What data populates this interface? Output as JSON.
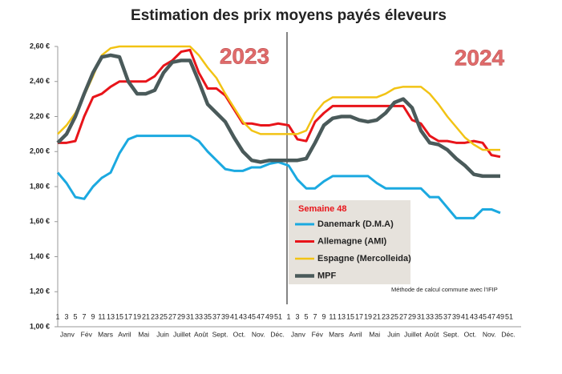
{
  "chart_data": {
    "type": "line",
    "title": "Estimation des prix moyens payés éleveurs",
    "annotations": [
      "2023",
      "2024",
      "Semaine 48",
      "Méthode de calcul commune avec l'IFIP"
    ],
    "categories": [
      "1",
      "3",
      "5",
      "7",
      "9",
      "11",
      "13",
      "15",
      "17",
      "19",
      "21",
      "23",
      "25",
      "27",
      "29",
      "31",
      "33",
      "35",
      "37",
      "39",
      "41",
      "43",
      "45",
      "47",
      "49",
      "51",
      "1",
      "3",
      "5",
      "7",
      "9",
      "11",
      "13",
      "15",
      "17",
      "19",
      "21",
      "23",
      "25",
      "27",
      "29",
      "31",
      "33",
      "35",
      "37",
      "39",
      "41",
      "43",
      "45",
      "47",
      "49",
      "51"
    ],
    "months": [
      "Janv",
      "Fév",
      "Mars",
      "Avril",
      "Mai",
      "Juin",
      "Juillet",
      "Août",
      "Sept.",
      "Oct.",
      "Nov.",
      "Déc.",
      "Janv",
      "Fév",
      "Mars",
      "Avril",
      "Mai",
      "Juin",
      "Juillet",
      "Août",
      "Sept.",
      "Oct.",
      "Nov.",
      "Déc."
    ],
    "ylim": [
      1.0,
      2.6
    ],
    "yticks": [
      {
        "value": 1.0,
        "label": "1,00 €"
      },
      {
        "value": 1.2,
        "label": "1,20 €"
      },
      {
        "value": 1.4,
        "label": "1,40 €"
      },
      {
        "value": 1.6,
        "label": "1,60 €"
      },
      {
        "value": 1.8,
        "label": "1,80 €"
      },
      {
        "value": 2.0,
        "label": "2,00 €"
      },
      {
        "value": 2.2,
        "label": "2,20 €"
      },
      {
        "value": 2.4,
        "label": "2,40 €"
      },
      {
        "value": 2.6,
        "label": "2,60 €"
      }
    ],
    "series": [
      {
        "name": "Danemark (D.M.A)",
        "color": "#1ba9e0",
        "width": 3,
        "values": [
          1.88,
          1.82,
          1.74,
          1.73,
          1.8,
          1.85,
          1.88,
          1.99,
          2.07,
          2.09,
          2.09,
          2.09,
          2.09,
          2.09,
          2.09,
          2.09,
          2.06,
          2.0,
          1.95,
          1.9,
          1.89,
          1.89,
          1.91,
          1.91,
          1.93,
          1.94,
          1.92,
          1.84,
          1.79,
          1.79,
          1.83,
          1.86,
          1.86,
          1.86,
          1.86,
          1.86,
          1.82,
          1.79,
          1.79,
          1.79,
          1.79,
          1.79,
          1.74,
          1.74,
          1.68,
          1.62,
          1.62,
          1.62,
          1.67,
          1.67,
          1.65,
          null
        ]
      },
      {
        "name": "Allemagne (AMI)",
        "color": "#e8141a",
        "width": 3,
        "values": [
          2.05,
          2.05,
          2.06,
          2.2,
          2.31,
          2.33,
          2.37,
          2.4,
          2.4,
          2.4,
          2.4,
          2.43,
          2.49,
          2.52,
          2.57,
          2.58,
          2.45,
          2.36,
          2.36,
          2.32,
          2.24,
          2.16,
          2.16,
          2.15,
          2.15,
          2.16,
          2.15,
          2.07,
          2.06,
          2.17,
          2.22,
          2.26,
          2.26,
          2.26,
          2.26,
          2.26,
          2.26,
          2.26,
          2.26,
          2.26,
          2.18,
          2.16,
          2.09,
          2.06,
          2.06,
          2.05,
          2.05,
          2.06,
          2.05,
          1.98,
          1.97,
          null
        ]
      },
      {
        "name": "Espagne (Mercolleida)",
        "color": "#f2c314",
        "width": 2.5,
        "values": [
          2.1,
          2.15,
          2.22,
          2.32,
          2.43,
          2.55,
          2.59,
          2.6,
          2.6,
          2.6,
          2.6,
          2.6,
          2.6,
          2.6,
          2.6,
          2.6,
          2.55,
          2.48,
          2.42,
          2.33,
          2.25,
          2.17,
          2.12,
          2.1,
          2.1,
          2.1,
          2.1,
          2.1,
          2.12,
          2.22,
          2.28,
          2.31,
          2.31,
          2.31,
          2.31,
          2.31,
          2.31,
          2.33,
          2.36,
          2.37,
          2.37,
          2.37,
          2.33,
          2.27,
          2.2,
          2.14,
          2.08,
          2.04,
          2.01,
          2.01,
          2.01,
          null
        ]
      },
      {
        "name": "MPF",
        "color": "#4a5a5a",
        "width": 4.5,
        "values": [
          2.05,
          2.1,
          2.2,
          2.33,
          2.45,
          2.54,
          2.55,
          2.54,
          2.4,
          2.33,
          2.33,
          2.35,
          2.45,
          2.51,
          2.52,
          2.52,
          2.4,
          2.27,
          2.22,
          2.17,
          2.08,
          2.0,
          1.95,
          1.94,
          1.95,
          1.95,
          1.95,
          1.95,
          1.96,
          2.05,
          2.15,
          2.19,
          2.2,
          2.2,
          2.18,
          2.17,
          2.18,
          2.22,
          2.28,
          2.3,
          2.25,
          2.12,
          2.05,
          2.04,
          2.01,
          1.96,
          1.92,
          1.87,
          1.86,
          1.86,
          1.86,
          null
        ]
      }
    ]
  }
}
